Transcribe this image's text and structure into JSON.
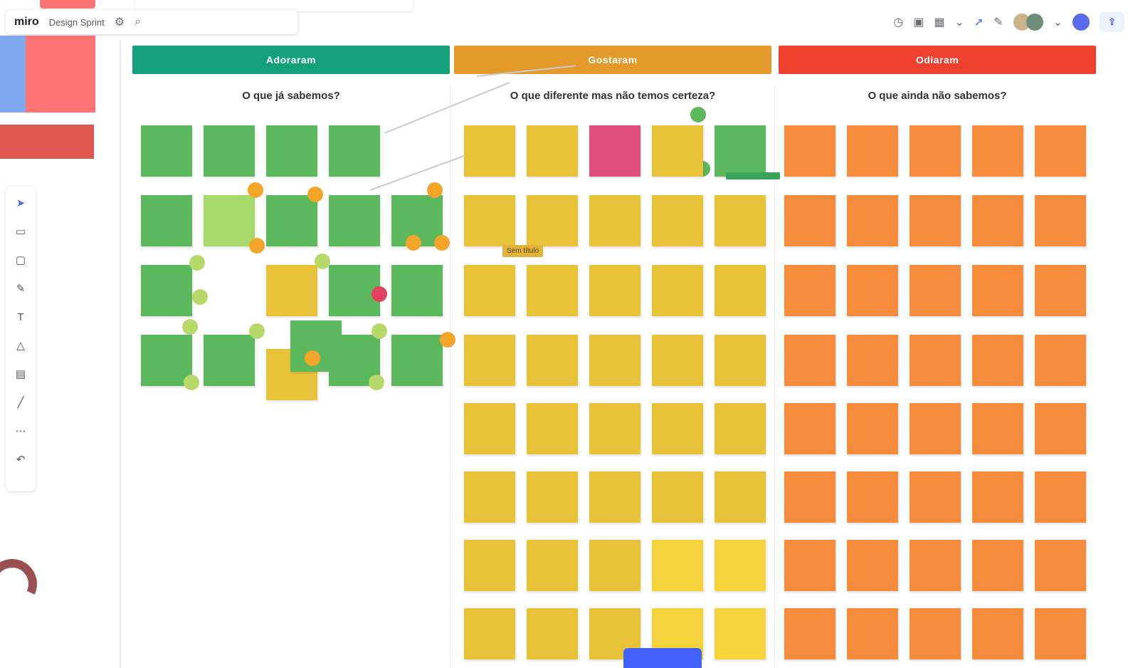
{
  "topbar": {
    "logo": "miro",
    "board_name": "Design Sprint",
    "floating_note": ""
  },
  "toolbar": {
    "items": [
      {
        "name": "select-tool",
        "glyph": "➤"
      },
      {
        "name": "frame-tool",
        "glyph": "▭"
      },
      {
        "name": "sticky-tool",
        "glyph": "▢"
      },
      {
        "name": "pen-tool",
        "glyph": "✎"
      },
      {
        "name": "text-tool",
        "glyph": "T"
      },
      {
        "name": "shape-tool",
        "glyph": "△"
      },
      {
        "name": "comment-tool",
        "glyph": "▤"
      },
      {
        "name": "line-tool",
        "glyph": "╱"
      },
      {
        "name": "more-tool",
        "glyph": "⋯"
      },
      {
        "name": "undo-tool",
        "glyph": "↶"
      }
    ]
  },
  "columns": [
    {
      "label": "Adoraram",
      "question": "O que já sabemos?",
      "color": "#15a07c"
    },
    {
      "label": "Gostaram",
      "question": "O que diferente mas não temos certeza?",
      "color": "#e39a2b"
    },
    {
      "label": "Odiaram",
      "question": "O que ainda não sabemos?",
      "color": "#ef3f2d"
    }
  ],
  "colors": {
    "green_sticky": "#5cb85c",
    "light_green_sticky": "#a6d96a",
    "yellow_sticky": "#e8c33a",
    "bright_yellow_sticky": "#f5d33d",
    "pink_sticky": "#e0507a",
    "orange_sticky": "#f58b3b",
    "dot_orange": "#f2a527",
    "dot_lime": "#b6d96a",
    "dot_red": "#e2415f",
    "accent": "#4262ff"
  },
  "labels": {
    "floating": "Sem título"
  }
}
